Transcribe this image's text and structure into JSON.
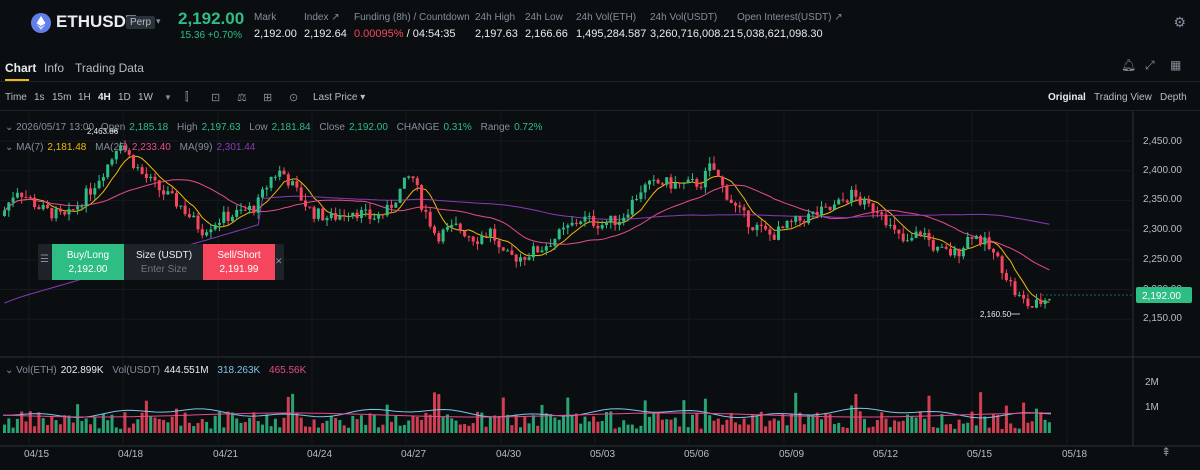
{
  "ticker": {
    "symbol": "ETHUSDT",
    "badge": "Perp",
    "last_price": "2,192.00",
    "change": "15.36 +0.70%",
    "stats": [
      {
        "label": "Mark",
        "value": "2,192.00"
      },
      {
        "label": "Index ↗",
        "value": "2,192.64"
      },
      {
        "label": "Funding (8h) / Countdown",
        "value_rate": "0.00095%",
        "value_countdown": " / 04:54:35"
      },
      {
        "label": "24h High",
        "value": "2,197.63"
      },
      {
        "label": "24h Low",
        "value": "2,166.66"
      },
      {
        "label": "24h Vol(ETH)",
        "value": "1,495,284.587"
      },
      {
        "label": "24h Vol(USDT)",
        "value": "3,260,716,008.21"
      },
      {
        "label": "Open Interest(USDT) ↗",
        "value": "5,038,621,098.30"
      }
    ]
  },
  "tabs": [
    "Chart",
    "Info",
    "Trading Data"
  ],
  "toolbar": {
    "intervals": [
      "Time",
      "1s",
      "15m",
      "1H",
      "4H",
      "1D",
      "1W"
    ],
    "active_interval": "4H",
    "price_type": "Last Price",
    "views": [
      "Original",
      "Trading View",
      "Depth"
    ],
    "active_view": "Original"
  },
  "legend": {
    "ohlc": {
      "date": "2026/05/17 13:00",
      "open_label": "Open",
      "open": "2,185.18",
      "high_label": "High",
      "high": "2,197.63",
      "low_label": "Low",
      "low": "2,181.84",
      "close_label": "Close",
      "close": "2,192.00",
      "change_label": "CHANGE",
      "change": "0.31%",
      "range_label": "Range",
      "range": "0.72%"
    },
    "ma": [
      {
        "label": "MA(7)",
        "value": "2,181.48",
        "color": "#f0b90b"
      },
      {
        "label": "MA(25)",
        "value": "2,233.40",
        "color": "#e64b8d"
      },
      {
        "label": "MA(99)",
        "value": "2,301.44",
        "color": "#8a3ab9"
      }
    ],
    "vol": [
      {
        "label": "Vol(ETH)",
        "value": "202.899K",
        "color": "#eaecef"
      },
      {
        "label": "Vol(USDT)",
        "value": "444.551M",
        "color": "#eaecef"
      },
      {
        "label": "",
        "value": "318.263K",
        "color": "#7ec4e8"
      },
      {
        "label": "",
        "value": "465.56K",
        "color": "#e64b8d"
      }
    ]
  },
  "order_panel": {
    "buy_label": "Buy/Long",
    "buy_price": "2,192.00",
    "size_label": "Size (USDT)",
    "size_placeholder": "Enter Size",
    "sell_label": "Sell/Short",
    "sell_price": "2,191.99"
  },
  "price_axis": {
    "ticks": [
      "2,450.00",
      "2,400.00",
      "2,350.00",
      "2,300.00",
      "2,250.00",
      "2,200.00",
      "2,150.00"
    ],
    "tick_values": [
      2450,
      2400,
      2350,
      2300,
      2250,
      2200,
      2150
    ],
    "current_price": "2,192.00"
  },
  "volume_axis": {
    "ticks": [
      "2M",
      "1M"
    ]
  },
  "time_axis": {
    "ticks": [
      "04/15",
      "04/18",
      "04/21",
      "04/24",
      "04/27",
      "04/30",
      "05/03",
      "05/06",
      "05/09",
      "05/12",
      "05/15",
      "05/18"
    ]
  },
  "annotations": {
    "high_label": "2,463.86",
    "low_label": "2,160.50"
  },
  "colors": {
    "up": "#2ebd85",
    "down": "#f6465d",
    "accent": "#f0b90b"
  }
}
